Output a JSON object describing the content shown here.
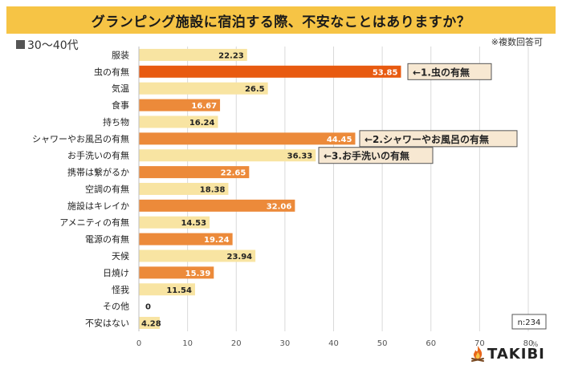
{
  "title": "グランピング施設に宿泊する際、不安なことはありますか？",
  "subtitle": "30～40代",
  "note": "※複数回答可",
  "sample": "n:234",
  "brand": "TAKIBI",
  "colors": {
    "dark": "#e85a10",
    "mid": "#ec8a3a",
    "light": "#f8e4a2",
    "title_bg": "#f6c445",
    "accent": "#e85a10"
  },
  "chart_data": {
    "type": "bar",
    "orientation": "horizontal",
    "title": "グランピング施設に宿泊する際、不安なことはありますか？",
    "xlabel": "%",
    "xlim": [
      0,
      80
    ],
    "xticks": [
      0,
      10,
      20,
      30,
      40,
      50,
      60,
      70,
      80
    ],
    "categories": [
      "服装",
      "虫の有無",
      "気温",
      "食事",
      "持ち物",
      "シャワーやお風呂の有無",
      "お手洗いの有無",
      "携帯は繋がるか",
      "空調の有無",
      "施設はキレイか",
      "アメニティの有無",
      "電源の有無",
      "天候",
      "日焼け",
      "怪我",
      "その他",
      "不安はない"
    ],
    "values": [
      22.23,
      53.85,
      26.5,
      16.67,
      16.24,
      44.45,
      36.33,
      22.65,
      18.38,
      32.06,
      14.53,
      19.24,
      23.94,
      15.39,
      11.54,
      0,
      4.28
    ],
    "value_labels": [
      "22.23",
      "53.85",
      "26.5",
      "16.67",
      "16.24",
      "44.45",
      "36.33",
      "22.65",
      "18.38",
      "32.06",
      "14.53",
      "19.24",
      "23.94",
      "15.39",
      "11.54",
      "0",
      "4.28"
    ],
    "bar_color_keys": [
      "light",
      "dark",
      "light",
      "mid",
      "light",
      "mid",
      "light",
      "mid",
      "light",
      "mid",
      "light",
      "mid",
      "light",
      "mid",
      "light",
      "light",
      "light"
    ],
    "annotations": [
      {
        "category": "虫の有無",
        "label": "←1.虫の有無"
      },
      {
        "category": "シャワーやお風呂の有無",
        "label": "←2.シャワーやお風呂の有無"
      },
      {
        "category": "お手洗いの有無",
        "label": "←3.お手洗いの有無"
      }
    ]
  }
}
